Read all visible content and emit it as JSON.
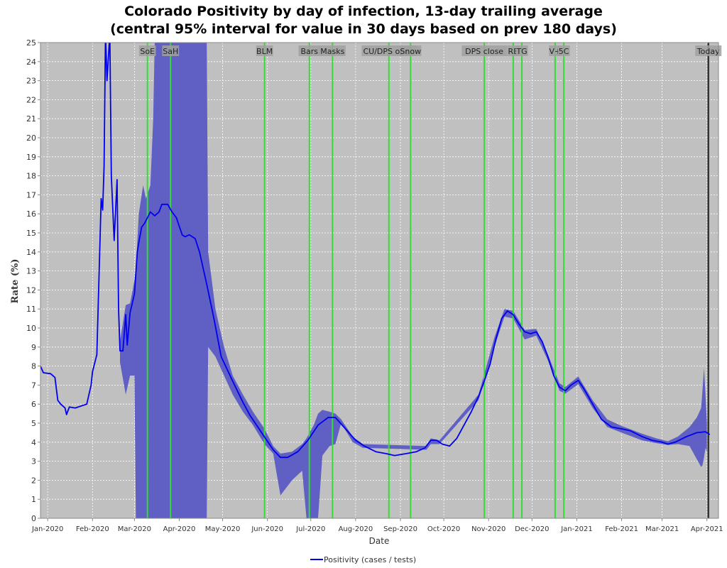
{
  "chart_data": {
    "type": "line",
    "title_line1": "Colorado Positivity by day of infection, 13-day trailing average",
    "title_line2": "(central 95% interval for value in 30 days based on prev 180 days)",
    "xlabel": "Date",
    "ylabel": "Rate (%)",
    "ylim": [
      0,
      25
    ],
    "xlim": [
      "2019-12-27",
      "2021-04-09"
    ],
    "grid": true,
    "legend_position": "bottom-center",
    "x_ticks": [
      "Jan-2020",
      "Feb-2020",
      "Mar-2020",
      "Apr-2020",
      "May-2020",
      "Jun-2020",
      "Jul-2020",
      "Aug-2020",
      "Sep-2020",
      "Oct-2020",
      "Nov-2020",
      "Dec-2020",
      "Jan-2021",
      "Feb-2021",
      "Mar-2021",
      "Apr-2021"
    ],
    "tick_dates": [
      "2020-01-01",
      "2020-02-01",
      "2020-03-01",
      "2020-04-01",
      "2020-05-01",
      "2020-06-01",
      "2020-07-01",
      "2020-08-01",
      "2020-09-01",
      "2020-10-01",
      "2020-11-01",
      "2020-12-01",
      "2021-01-01",
      "2021-02-01",
      "2021-03-01",
      "2021-04-01"
    ],
    "y_ticks": [
      0,
      1,
      2,
      3,
      4,
      5,
      6,
      7,
      8,
      9,
      10,
      11,
      12,
      13,
      14,
      15,
      16,
      17,
      18,
      19,
      20,
      21,
      22,
      23,
      24,
      25
    ],
    "colors": {
      "line": "#0000ee",
      "band": "#5b5bc4",
      "event": "#33dd33",
      "today": "#333333",
      "plot_bg": "#c0c0c0"
    },
    "series": [
      {
        "name": "Positivity (cases / tests)",
        "points": [
          [
            "2019-12-27",
            8.0
          ],
          [
            "2019-12-29",
            7.65
          ],
          [
            "2020-01-03",
            7.6
          ],
          [
            "2020-01-06",
            7.4
          ],
          [
            "2020-01-08",
            6.2
          ],
          [
            "2020-01-10",
            6.0
          ],
          [
            "2020-01-13",
            5.8
          ],
          [
            "2020-01-14",
            5.45
          ],
          [
            "2020-01-16",
            5.85
          ],
          [
            "2020-01-20",
            5.8
          ],
          [
            "2020-01-28",
            6.0
          ],
          [
            "2020-01-31",
            7.0
          ],
          [
            "2020-02-01",
            7.7
          ],
          [
            "2020-02-04",
            8.6
          ],
          [
            "2020-02-07",
            16.8
          ],
          [
            "2020-02-08",
            16.2
          ],
          [
            "2020-02-09",
            18.5
          ],
          [
            "2020-02-10",
            25.5
          ],
          [
            "2020-02-11",
            23.0
          ],
          [
            "2020-02-13",
            25.5
          ],
          [
            "2020-02-14",
            18.0
          ],
          [
            "2020-02-16",
            14.6
          ],
          [
            "2020-02-18",
            17.8
          ],
          [
            "2020-02-19",
            11.0
          ],
          [
            "2020-02-20",
            8.8
          ],
          [
            "2020-02-22",
            8.8
          ],
          [
            "2020-02-24",
            10.7
          ],
          [
            "2020-02-25",
            9.1
          ],
          [
            "2020-02-27",
            10.8
          ],
          [
            "2020-03-01",
            11.8
          ],
          [
            "2020-03-03",
            14.0
          ],
          [
            "2020-03-04",
            14.5
          ],
          [
            "2020-03-06",
            15.3
          ],
          [
            "2020-03-08",
            15.5
          ],
          [
            "2020-03-12",
            16.1
          ],
          [
            "2020-03-15",
            15.9
          ],
          [
            "2020-03-18",
            16.1
          ],
          [
            "2020-03-20",
            16.5
          ],
          [
            "2020-03-24",
            16.5
          ],
          [
            "2020-03-27",
            16.1
          ],
          [
            "2020-03-30",
            15.8
          ],
          [
            "2020-04-03",
            14.9
          ],
          [
            "2020-04-05",
            14.8
          ],
          [
            "2020-04-08",
            14.9
          ],
          [
            "2020-04-12",
            14.7
          ],
          [
            "2020-04-15",
            14.0
          ],
          [
            "2020-04-20",
            12.3
          ],
          [
            "2020-04-25",
            10.5
          ],
          [
            "2020-04-30",
            8.5
          ],
          [
            "2020-05-08",
            7.2
          ],
          [
            "2020-05-15",
            6.1
          ],
          [
            "2020-05-20",
            5.4
          ],
          [
            "2020-05-28",
            4.5
          ],
          [
            "2020-06-05",
            3.6
          ],
          [
            "2020-06-10",
            3.2
          ],
          [
            "2020-06-15",
            3.2
          ],
          [
            "2020-06-22",
            3.5
          ],
          [
            "2020-06-29",
            4.1
          ],
          [
            "2020-07-06",
            4.9
          ],
          [
            "2020-07-13",
            5.3
          ],
          [
            "2020-07-18",
            5.3
          ],
          [
            "2020-07-25",
            4.7
          ],
          [
            "2020-08-01",
            4.1
          ],
          [
            "2020-08-07",
            3.8
          ],
          [
            "2020-08-15",
            3.5
          ],
          [
            "2020-08-22",
            3.4
          ],
          [
            "2020-08-28",
            3.3
          ],
          [
            "2020-09-05",
            3.4
          ],
          [
            "2020-09-12",
            3.5
          ],
          [
            "2020-09-18",
            3.7
          ],
          [
            "2020-09-22",
            4.1
          ],
          [
            "2020-09-26",
            4.1
          ],
          [
            "2020-09-30",
            3.9
          ],
          [
            "2020-10-05",
            3.8
          ],
          [
            "2020-10-10",
            4.2
          ],
          [
            "2020-10-15",
            4.9
          ],
          [
            "2020-10-20",
            5.6
          ],
          [
            "2020-10-25",
            6.4
          ],
          [
            "2020-10-28",
            7.0
          ],
          [
            "2020-11-02",
            8.1
          ],
          [
            "2020-11-06",
            9.4
          ],
          [
            "2020-11-10",
            10.5
          ],
          [
            "2020-11-14",
            10.9
          ],
          [
            "2020-11-18",
            10.7
          ],
          [
            "2020-11-22",
            10.2
          ],
          [
            "2020-11-26",
            9.8
          ],
          [
            "2020-11-30",
            9.7
          ],
          [
            "2020-12-04",
            9.8
          ],
          [
            "2020-12-08",
            9.3
          ],
          [
            "2020-12-12",
            8.5
          ],
          [
            "2020-12-16",
            7.5
          ],
          [
            "2020-12-20",
            6.9
          ],
          [
            "2020-12-24",
            6.7
          ],
          [
            "2020-12-28",
            7.0
          ],
          [
            "2021-01-02",
            7.25
          ],
          [
            "2021-01-06",
            6.8
          ],
          [
            "2021-01-12",
            6.0
          ],
          [
            "2021-01-18",
            5.2
          ],
          [
            "2021-01-25",
            4.8
          ],
          [
            "2021-02-01",
            4.7
          ],
          [
            "2021-02-07",
            4.6
          ],
          [
            "2021-02-15",
            4.3
          ],
          [
            "2021-02-22",
            4.1
          ],
          [
            "2021-03-01",
            4.0
          ],
          [
            "2021-03-05",
            3.9
          ],
          [
            "2021-03-10",
            4.0
          ],
          [
            "2021-03-18",
            4.3
          ],
          [
            "2021-03-25",
            4.5
          ],
          [
            "2021-03-31",
            4.55
          ],
          [
            "2021-04-03",
            4.4
          ]
        ]
      }
    ],
    "band_interval": [
      [
        "2020-02-20",
        8.2,
        9.3
      ],
      [
        "2020-02-24",
        6.5,
        11.2
      ],
      [
        "2020-02-27",
        7.5,
        11.3
      ],
      [
        "2020-03-01",
        7.5,
        12.5
      ],
      [
        "2020-03-02",
        0,
        13.2
      ],
      [
        "2020-03-04",
        0,
        16.0
      ],
      [
        "2020-03-07",
        0,
        17.5
      ],
      [
        "2020-03-09",
        0,
        16.8
      ],
      [
        "2020-03-12",
        0,
        17.5
      ],
      [
        "2020-03-14",
        0,
        21.0
      ],
      [
        "2020-03-15",
        0,
        25
      ],
      [
        "2020-04-20",
        0,
        25
      ],
      [
        "2020-04-21",
        9.0,
        14.0
      ],
      [
        "2020-04-26",
        8.5,
        11.0
      ],
      [
        "2020-05-02",
        7.5,
        9.0
      ],
      [
        "2020-05-08",
        6.5,
        7.5
      ],
      [
        "2020-05-15",
        5.6,
        6.5
      ],
      [
        "2020-05-22",
        4.9,
        5.6
      ],
      [
        "2020-05-30",
        3.9,
        4.7
      ],
      [
        "2020-06-05",
        3.4,
        3.8
      ],
      [
        "2020-06-10",
        1.2,
        3.4
      ],
      [
        "2020-06-18",
        2.0,
        3.5
      ],
      [
        "2020-06-25",
        2.5,
        3.9
      ],
      [
        "2020-06-28",
        0,
        4.2
      ],
      [
        "2020-07-03",
        0,
        4.9
      ],
      [
        "2020-07-06",
        0,
        5.5
      ],
      [
        "2020-07-09",
        3.3,
        5.7
      ],
      [
        "2020-07-14",
        3.8,
        5.6
      ],
      [
        "2020-07-18",
        3.9,
        5.5
      ],
      [
        "2020-07-22",
        5.0,
        5.2
      ],
      [
        "2020-07-30",
        4.0,
        4.3
      ],
      [
        "2020-08-06",
        3.7,
        3.9
      ],
      [
        "2020-09-19",
        3.6,
        3.8
      ],
      [
        "2020-09-22",
        3.9,
        4.2
      ],
      [
        "2020-09-28",
        3.9,
        4.1
      ],
      [
        "2020-10-25",
        6.2,
        6.5
      ],
      [
        "2020-11-05",
        9.0,
        9.5
      ],
      [
        "2020-11-12",
        10.6,
        11.0
      ],
      [
        "2020-11-18",
        10.5,
        10.9
      ],
      [
        "2020-11-26",
        9.4,
        9.9
      ],
      [
        "2020-12-04",
        9.6,
        9.95
      ],
      [
        "2020-12-12",
        8.3,
        8.6
      ],
      [
        "2020-12-20",
        6.7,
        7.1
      ],
      [
        "2020-12-24",
        6.55,
        6.9
      ],
      [
        "2021-01-02",
        7.05,
        7.45
      ],
      [
        "2021-01-12",
        5.8,
        6.2
      ],
      [
        "2021-01-22",
        4.8,
        5.2
      ],
      [
        "2021-02-01",
        4.5,
        4.85
      ],
      [
        "2021-02-15",
        4.1,
        4.45
      ],
      [
        "2021-02-25",
        3.95,
        4.2
      ],
      [
        "2021-03-05",
        3.85,
        4.05
      ],
      [
        "2021-03-12",
        3.9,
        4.3
      ],
      [
        "2021-03-20",
        3.8,
        4.8
      ],
      [
        "2021-03-25",
        3.1,
        5.3
      ],
      [
        "2021-03-28",
        2.7,
        5.8
      ],
      [
        "2021-03-29",
        2.8,
        6.8
      ],
      [
        "2021-03-30",
        3.2,
        7.9
      ],
      [
        "2021-03-31",
        3.7,
        6.5
      ],
      [
        "2021-04-01",
        3.5,
        5.0
      ]
    ],
    "events": [
      {
        "label": "SoE",
        "date": "2020-03-10"
      },
      {
        "label": "SaH",
        "date": "2020-03-26"
      },
      {
        "label": "BLM",
        "date": "2020-05-30"
      },
      {
        "label": "Bars",
        "date": "2020-06-30"
      },
      {
        "label": "Masks",
        "date": "2020-07-16"
      },
      {
        "label": "CU/DPS open",
        "date": "2020-08-24"
      },
      {
        "label": "Snow",
        "date": "2020-09-08"
      },
      {
        "label": "DPS close",
        "date": "2020-10-29"
      },
      {
        "label": "RE",
        "date": "2020-11-18"
      },
      {
        "label": "TG",
        "date": "2020-11-24"
      },
      {
        "label": "V+",
        "date": "2020-12-17"
      },
      {
        "label": "5C",
        "date": "2020-12-23"
      }
    ],
    "today": {
      "label": "Today",
      "date": "2021-04-02"
    }
  }
}
